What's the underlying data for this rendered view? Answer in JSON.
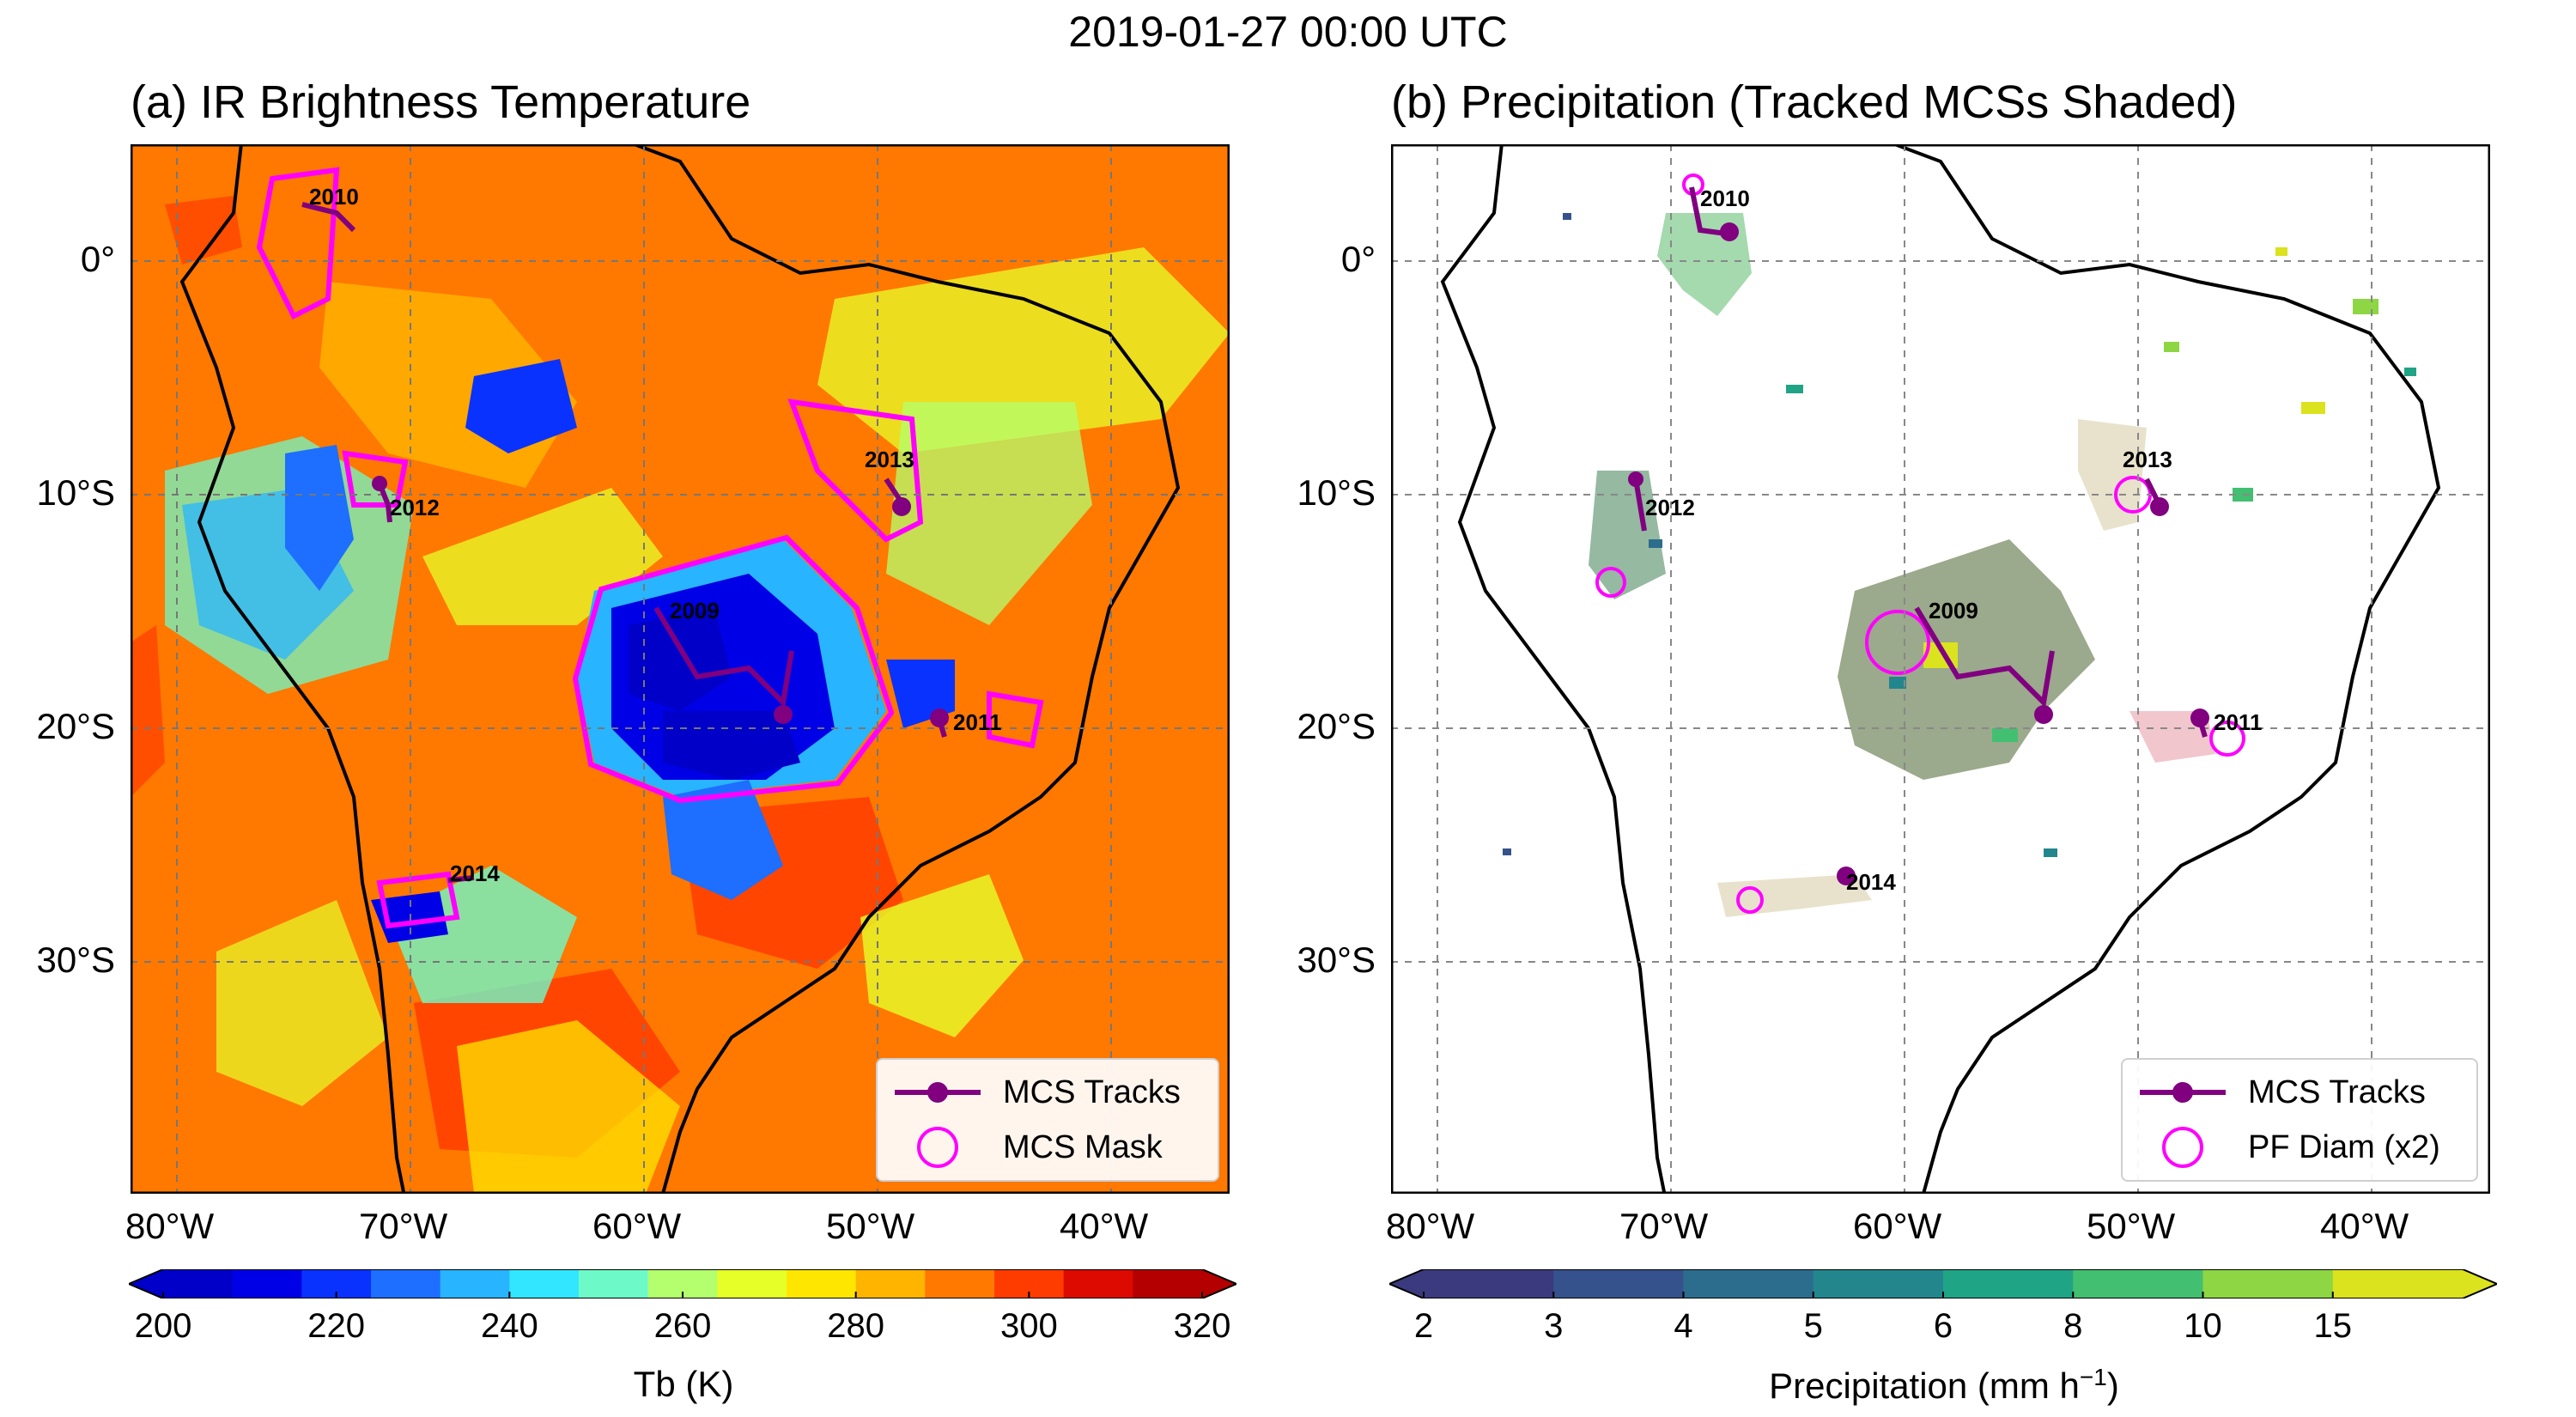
{
  "suptitle": "2019-01-27 00:00 UTC",
  "panel_a": {
    "title": "(a) IR Brightness Temperature",
    "legend": {
      "track_label": "MCS Tracks",
      "mask_label": "MCS Mask"
    },
    "colorbar": {
      "label": "Tb (K)",
      "ticks": [
        "200",
        "220",
        "240",
        "260",
        "280",
        "300",
        "320"
      ],
      "colors": [
        "#0000c8",
        "#0000e6",
        "#0a32ff",
        "#1e6eff",
        "#28b4ff",
        "#32e6ff",
        "#6efac8",
        "#b4ff6e",
        "#e6ff28",
        "#ffe600",
        "#ffb400",
        "#ff7800",
        "#ff3c00",
        "#dc0a00",
        "#b40000"
      ]
    },
    "mcs_labels": [
      "2010",
      "2013",
      "2012",
      "2009",
      "2011",
      "2014"
    ]
  },
  "panel_b": {
    "title": "(b) Precipitation (Tracked MCSs Shaded)",
    "legend": {
      "track_label": "MCS Tracks",
      "pf_label": "PF Diam (x2)"
    },
    "colorbar": {
      "label": "Precipitation (mm h",
      "label_sup": "−1",
      "label_end": ")",
      "ticks": [
        "2",
        "3",
        "4",
        "5",
        "6",
        "8",
        "10",
        "15"
      ],
      "colors": [
        "#3b3a7e",
        "#35528c",
        "#2c6d8e",
        "#23868d",
        "#20a486",
        "#43bf71",
        "#8ed643",
        "#dbe21e"
      ]
    },
    "mcs_labels": [
      "2010",
      "2013",
      "2012",
      "2009",
      "2011",
      "2014"
    ]
  },
  "axes": {
    "lon_ticks": [
      "80°W",
      "70°W",
      "60°W",
      "50°W",
      "40°W"
    ],
    "lat_ticks": [
      "0°",
      "10°S",
      "20°S",
      "30°S"
    ]
  },
  "colors": {
    "track": "#800080",
    "mask": "#ff00ff",
    "background_tb": "#ff7800",
    "mcs_shade": "#8a9a78"
  }
}
